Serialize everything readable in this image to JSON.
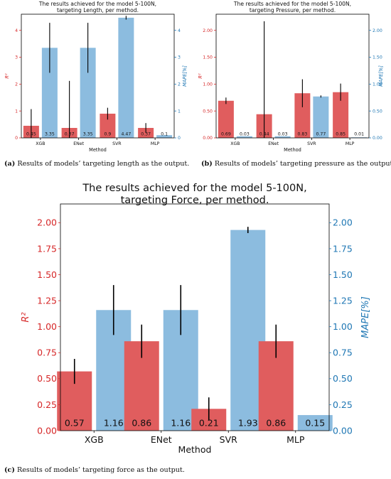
{
  "colors": {
    "r2": "#e05d5e",
    "mape": "#8cbcdf",
    "err": "#000000",
    "r2_axis": "#d62728",
    "mape_axis": "#1f77b4"
  },
  "captions": {
    "a_label": "(a)",
    "a_text": "Results of models’ targeting length as the output.",
    "b_label": "(b)",
    "b_text": "Results of models’ targeting pressure as the output.",
    "c_label": "(c)",
    "c_text": "Results of models’ targeting force as the output."
  },
  "chart_data": [
    {
      "type": "bar",
      "title_line1": "The results achieved for the model 5-100N,",
      "title_line2": "targeting Length, per method.",
      "xlabel": "Method",
      "ylabel_left": "R²",
      "ylabel_right": "MAPE[%]",
      "categories": [
        "XGB",
        "ENet",
        "SVR",
        "MLP"
      ],
      "ylim_left": [
        0,
        4.6
      ],
      "ylim_right": [
        0,
        4.6
      ],
      "yticks_left": [
        0,
        1,
        2,
        3,
        4
      ],
      "yticks_right": [
        0,
        1,
        2,
        3,
        4
      ],
      "series": [
        {
          "name": "R²",
          "axis": "left",
          "values": [
            0.45,
            0.37,
            0.9,
            0.37
          ],
          "labels": [
            "0.45",
            "0.37",
            "0.9",
            "0.37"
          ],
          "err": [
            0.62,
            1.75,
            0.22,
            0.18
          ]
        },
        {
          "name": "MAPE[%]",
          "axis": "right",
          "values": [
            3.35,
            3.35,
            4.47,
            0.1
          ],
          "labels": [
            "3.35",
            "3.35",
            "4.47",
            "0.1"
          ],
          "err": [
            0.93,
            0.93,
            0.07,
            0.0
          ]
        }
      ]
    },
    {
      "type": "bar",
      "title_line1": "The results achieved for the model 5-100N,",
      "title_line2": "targeting Pressure, per method.",
      "xlabel": "Method",
      "ylabel_left": "R²",
      "ylabel_right": "MAPE[%]",
      "categories": [
        "XGB",
        "ENet",
        "SVR",
        "MLP"
      ],
      "ylim_left": [
        0,
        2.3
      ],
      "ylim_right": [
        0,
        2.3
      ],
      "yticks_left": [
        0,
        0.5,
        1.0,
        1.5,
        2.0
      ],
      "yticks_right": [
        0,
        0.5,
        1.0,
        1.5,
        2.0
      ],
      "series": [
        {
          "name": "R²",
          "axis": "left",
          "values": [
            0.69,
            0.44,
            0.83,
            0.85
          ],
          "labels": [
            "0.69",
            "0.44",
            "0.83",
            "0.85"
          ],
          "err": [
            0.06,
            1.73,
            0.26,
            0.16
          ]
        },
        {
          "name": "MAPE[%]",
          "axis": "right",
          "values": [
            0.03,
            0.03,
            0.77,
            0.01
          ],
          "labels": [
            "0.03",
            "0.03",
            "0.77",
            "0.01"
          ],
          "err": [
            0.0,
            0.0,
            0.02,
            0.0
          ]
        }
      ]
    },
    {
      "type": "bar",
      "title_line1": "The results achieved for the model 5-100N,",
      "title_line2": "targeting Force, per method.",
      "xlabel": "Method",
      "ylabel_left": "R²",
      "ylabel_right": "MAPE[%]",
      "categories": [
        "XGB",
        "ENet",
        "SVR",
        "MLP"
      ],
      "ylim_left": [
        0,
        2.18
      ],
      "ylim_right": [
        0,
        2.18
      ],
      "yticks_left": [
        0,
        0.25,
        0.5,
        0.75,
        1.0,
        1.25,
        1.5,
        1.75,
        2.0
      ],
      "yticks_right": [
        0,
        0.25,
        0.5,
        0.75,
        1.0,
        1.25,
        1.5,
        1.75,
        2.0
      ],
      "series": [
        {
          "name": "R²",
          "axis": "left",
          "values": [
            0.57,
            0.86,
            0.21,
            0.86
          ],
          "labels": [
            "0.57",
            "0.86",
            "0.21",
            "0.86"
          ],
          "err": [
            0.12,
            0.16,
            0.11,
            0.16
          ]
        },
        {
          "name": "MAPE[%]",
          "axis": "right",
          "values": [
            1.16,
            1.16,
            1.93,
            0.15
          ],
          "labels": [
            "1.16",
            "1.16",
            "1.93",
            "0.15"
          ],
          "err": [
            0.24,
            0.24,
            0.03,
            0.0
          ]
        }
      ]
    }
  ]
}
